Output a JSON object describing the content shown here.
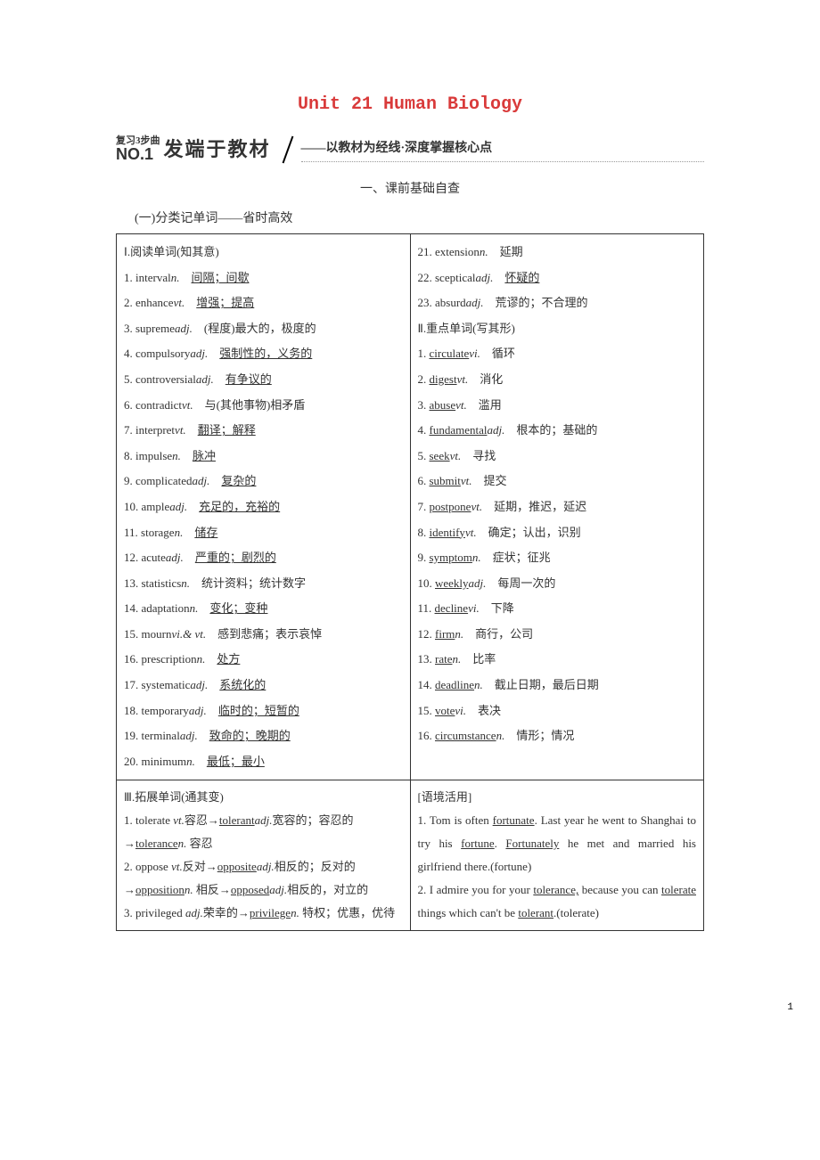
{
  "title_color": "#d93a3a",
  "title": "Unit 21 Human Biology",
  "section_sup": "复习3步曲",
  "section_no": "NO.1",
  "section_title": "发端于教材",
  "section_sub": "——以教材为经线·深度掌握核心点",
  "pre_heading": "一、课前基础自查",
  "sub_heading": "(一)分类记单词——省时高效",
  "col1_head": "Ⅰ.阅读单词(知其意)",
  "col1": [
    {
      "n": "1.",
      "w": "interval",
      "p": "n.",
      "d": "间隔；间歇",
      "u": true
    },
    {
      "n": "2.",
      "w": "enhance",
      "p": "vt.",
      "d": "增强；提高",
      "u": true
    },
    {
      "n": "3.",
      "w": "supreme",
      "p": "adj.",
      "d": "(程度)最大的，极度的",
      "u": false
    },
    {
      "n": "4.",
      "w": "compulsory",
      "p": "adj.",
      "d": "强制性的，义务的",
      "u": true
    },
    {
      "n": "5.",
      "w": "controversial",
      "p": "adj.",
      "d": "有争议的",
      "u": true
    },
    {
      "n": "6.",
      "w": "contradict",
      "p": "vt.",
      "d": "与(其他事物)相矛盾",
      "u": false
    },
    {
      "n": "7.",
      "w": "interpret",
      "p": "vt.",
      "d": "翻译；解释",
      "u": true
    },
    {
      "n": "8.",
      "w": "impulse",
      "p": "n.",
      "d": "脉冲",
      "u": true
    },
    {
      "n": "9.",
      "w": "complicated",
      "p": "adj.",
      "d": "复杂的",
      "u": true
    },
    {
      "n": "10.",
      "w": "ample",
      "p": "adj.",
      "d": "充足的，充裕的",
      "u": true
    },
    {
      "n": "11.",
      "w": "storage",
      "p": "n.",
      "d": "储存",
      "u": true
    },
    {
      "n": "12.",
      "w": "acute",
      "p": "adj.",
      "d": "严重的；剧烈的",
      "u": true
    },
    {
      "n": "13.",
      "w": "statistics",
      "p": "n.",
      "d": "统计资料；统计数字",
      "u": false
    },
    {
      "n": "14.",
      "w": "adaptation",
      "p": "n.",
      "d": "变化；变种",
      "u": true
    },
    {
      "n": "15.",
      "w": "mourn",
      "p": "vi.& vt.",
      "d": "感到悲痛；表示哀悼",
      "u": false
    },
    {
      "n": "16.",
      "w": "prescription",
      "p": "n.",
      "d": "处方",
      "u": true
    },
    {
      "n": "17.",
      "w": "systematic",
      "p": "adj.",
      "d": "系统化的",
      "u": true
    },
    {
      "n": "18.",
      "w": "temporary",
      "p": "adj.",
      "d": "临时的；短暂的",
      "u": true
    },
    {
      "n": "19.",
      "w": "terminal",
      "p": "adj.",
      "d": "致命的；晚期的",
      "u": true
    },
    {
      "n": "20.",
      "w": "minimum",
      "p": "n.",
      "d": "最低；最小",
      "u": true
    }
  ],
  "col2a": [
    {
      "n": "21.",
      "w": "extension",
      "p": "n.",
      "d": "延期",
      "u": false
    },
    {
      "n": "22.",
      "w": "sceptical",
      "p": "adj.",
      "d": "怀疑的",
      "u": true
    },
    {
      "n": "23.",
      "w": "absurd",
      "p": "adj.",
      "d": "荒谬的；不合理的",
      "u": false
    }
  ],
  "col2_head": "Ⅱ.重点单词(写其形)",
  "col2b": [
    {
      "n": "1.",
      "w": "circulate",
      "p": "vi.",
      "d": "循环"
    },
    {
      "n": "2.",
      "w": "digest",
      "p": "vt.",
      "d": "消化"
    },
    {
      "n": "3.",
      "w": "abuse",
      "p": "vt.",
      "d": "滥用"
    },
    {
      "n": "4.",
      "w": "fundamental",
      "p": "adj.",
      "d": "根本的；基础的"
    },
    {
      "n": "5.",
      "w": "seek",
      "p": "vt.",
      "d": "寻找"
    },
    {
      "n": "6.",
      "w": "submit",
      "p": "vt.",
      "d": "提交"
    },
    {
      "n": "7.",
      "w": "postpone",
      "p": "vt.",
      "d": "延期，推迟，延迟"
    },
    {
      "n": "8.",
      "w": "identify",
      "p": "vt.",
      "d": "确定；认出，识别"
    },
    {
      "n": "9.",
      "w": "symptom",
      "p": "n.",
      "d": "症状；征兆"
    },
    {
      "n": "10.",
      "w": "weekly",
      "p": "adj.",
      "d": "每周一次的"
    },
    {
      "n": "11.",
      "w": "decline",
      "p": "vi.",
      "d": "下降"
    },
    {
      "n": "12.",
      "w": "firm",
      "p": "n.",
      "d": "商行，公司"
    },
    {
      "n": "13.",
      "w": "rate",
      "p": "n.",
      "d": "比率"
    },
    {
      "n": "14.",
      "w": "deadline",
      "p": "n.",
      "d": "截止日期，最后日期"
    },
    {
      "n": "15.",
      "w": "vote",
      "p": "vi.",
      "d": "表决"
    },
    {
      "n": "16.",
      "w": "circumstance",
      "p": "n.",
      "d": "情形；情况"
    }
  ],
  "row2_left_head": "Ⅲ.拓展单词(通其变)",
  "row2_left": [
    "1. tolerate <i>vt.</i>容忍→<u>tolerant</u><i>adj.</i>宽容的；容忍的→<u>tolerance</u><i>n.</i> 容忍",
    "2. oppose <i>vt.</i>反对→<u>opposite</u><i>adj.</i>相反的；反对的→<u>opposition</u><i>n.</i> 相反→<u>opposed</u><i>adj.</i>相反的，对立的",
    "3. privileged <i>adj.</i>荣幸的→<u>privilege</u><i>n.</i> 特权；优惠，优待"
  ],
  "row2_right_head": "[语境活用]",
  "row2_right": [
    "1. Tom is often <u>fortunate</u>. Last year he went to Shanghai to try his <u>fortune</u>. <u>Fortunately</u> he met and married his girlfriend there.(fortune)",
    "2. I admire you for your <u>tolerance,</u> because you can <u>tolerate</u> things which can't be <u>tolerant</u>.(tolerate)"
  ],
  "page_num": "1"
}
